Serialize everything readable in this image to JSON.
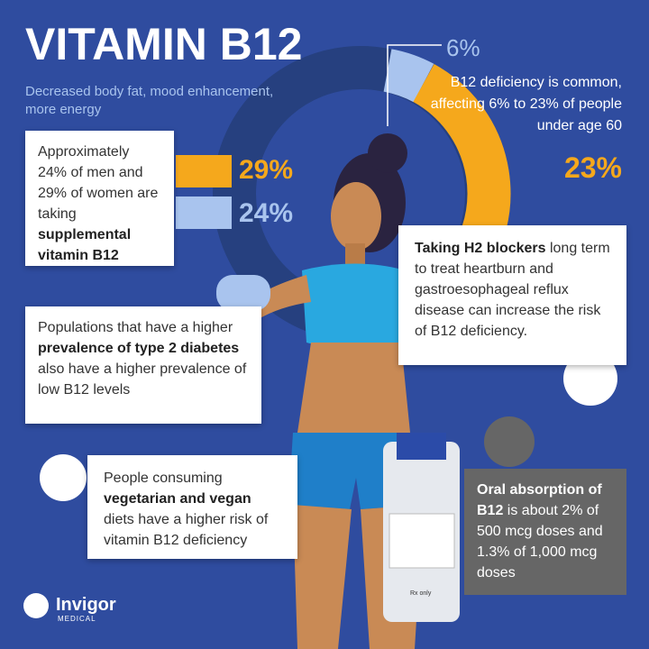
{
  "header": {
    "title": "VITAMIN B12",
    "subtitle": "Decreased body fat, mood enhancement, more energy"
  },
  "deficiency": {
    "low": "6%",
    "text": "B12 deficiency is common, affecting 6% to 23% of people under age 60",
    "high": "23%"
  },
  "supplement": {
    "parts": [
      "Approximately 24% of men and 29% of women are taking ",
      "supplemental vitamin B12"
    ],
    "women": "29%",
    "men": "24%"
  },
  "diabetes": {
    "parts": [
      "Populations that have a higher ",
      "prevalence of type 2 diabetes",
      " also have a higher prevalence of low B12 levels"
    ]
  },
  "h2": {
    "parts": [
      "Taking H2 blockers",
      " long term to treat heartburn and gastroesophageal reflux disease can increase the risk of B12 deficiency."
    ]
  },
  "vegan": {
    "parts": [
      "People consuming ",
      "vegetarian and vegan",
      " diets have a higher risk of vitamin B12 deficiency"
    ]
  },
  "oral": {
    "parts": [
      "Oral absorption of B12",
      " is about 2% of 500 mcg doses and 1.3% of 1,000 mcg doses"
    ]
  },
  "vial": {
    "label": "Rx only"
  },
  "logo": {
    "name": "Invigor",
    "sub": "MEDICAL"
  }
}
